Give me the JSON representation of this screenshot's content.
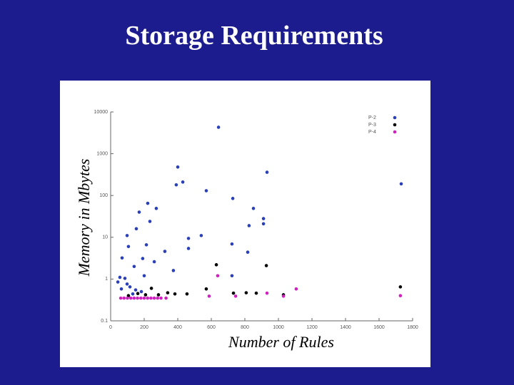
{
  "chart_data": {
    "type": "scatter",
    "title": "Storage Requirements",
    "x_label": "Number of Rules",
    "y_label": "Memory in Mbytes",
    "xlim": [
      0,
      1800
    ],
    "xticks": [
      0,
      200,
      400,
      600,
      800,
      1000,
      1200,
      1400,
      1600,
      1800
    ],
    "ylim": [
      0.1,
      10000
    ],
    "yticks": [
      0.1,
      1,
      10,
      100,
      1000,
      10000
    ],
    "ylog": true,
    "grid": false,
    "legend": "upper right",
    "series": [
      {
        "name": "P-2",
        "color": "#2a3fb8",
        "x": [
          643,
          400,
          430,
          391,
          570,
          932,
          1732,
          728,
          851,
          825,
          911,
          911,
          221,
          170,
          272,
          234,
          153,
          540,
          464,
          464,
          323,
          213,
          98,
          106,
          68,
          140,
          374,
          723,
          817,
          723,
          191,
          260,
          200,
          43,
          64,
          85,
          98,
          115,
          149,
          183,
          132,
          55
        ],
        "y": [
          4300,
          480,
          210,
          180,
          130,
          360,
          190,
          85,
          49,
          19,
          21,
          28,
          65,
          40,
          49,
          24,
          16,
          11,
          9.4,
          5.4,
          4.6,
          6.6,
          11,
          6,
          3.2,
          2,
          1.6,
          6.9,
          4.4,
          1.2,
          3.1,
          2.6,
          1.2,
          0.85,
          0.58,
          1.04,
          0.76,
          0.65,
          0.55,
          0.5,
          0.44,
          1.1
        ]
      },
      {
        "name": "P-3",
        "color": "#000000",
        "x": [
          208,
          285,
          340,
          383,
          455,
          570,
          732,
          808,
          868,
          928,
          1030,
          1727,
          106,
          162,
          243,
          630
        ],
        "y": [
          0.42,
          0.42,
          0.47,
          0.44,
          0.44,
          0.58,
          0.46,
          0.47,
          0.46,
          2.1,
          0.42,
          0.65,
          0.4,
          0.45,
          0.6,
          2.2
        ]
      },
      {
        "name": "P-4",
        "color": "#d020c0",
        "x": [
          60,
          80,
          100,
          120,
          140,
          160,
          180,
          200,
          220,
          240,
          260,
          280,
          300,
          330,
          638,
          932,
          1106,
          1727,
          587,
          745,
          1030
        ],
        "y": [
          0.35,
          0.35,
          0.35,
          0.35,
          0.35,
          0.35,
          0.35,
          0.35,
          0.35,
          0.35,
          0.35,
          0.35,
          0.35,
          0.35,
          1.2,
          0.46,
          0.58,
          0.4,
          0.39,
          0.39,
          0.39
        ]
      }
    ]
  }
}
